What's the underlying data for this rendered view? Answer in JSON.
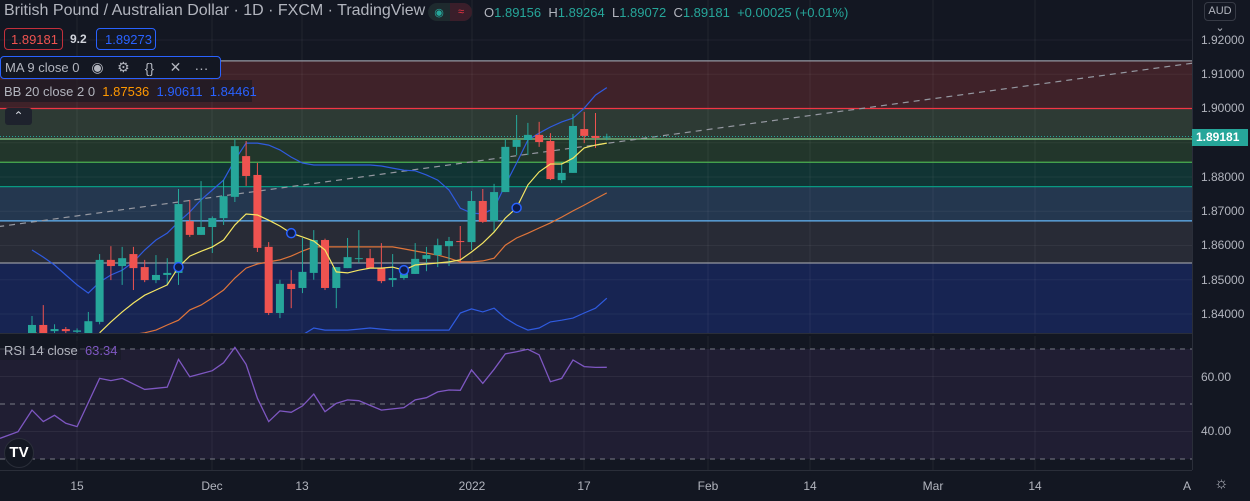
{
  "header": {
    "title": "British Pound / Australian Dollar · 1D · FXCM · TradingView",
    "status_left": "●",
    "status_right": "≈",
    "ohlc": {
      "o_label": "O",
      "o": "1.89156",
      "h_label": "H",
      "h": "1.89264",
      "l_label": "L",
      "l": "1.89072",
      "c_label": "C",
      "c": "1.89181",
      "change": "+0.00025 (+0.01%)"
    }
  },
  "trade": {
    "sell": "1.89181",
    "spread": "9.2",
    "buy": "1.89273"
  },
  "legend": {
    "ma": "MA 9 close 0",
    "bb_label": "BB 20 close 2 0",
    "bb_basis": "1.87536",
    "bb_upper": "1.90611",
    "bb_lower": "1.84461",
    "rsi_label": "RSI 14 close",
    "rsi_value": "63.34"
  },
  "icons": {
    "eye": "◉",
    "gear": "⚙",
    "braces": "{}",
    "close": "✕",
    "more": "···",
    "collapse": "⌃",
    "settings": "☼"
  },
  "price_axis": {
    "currency": "AUD ⌄",
    "current": "1.89181",
    "labels": [
      "1.92000",
      "1.91000",
      "1.90000",
      "1.88000",
      "1.87000",
      "1.86000",
      "1.85000",
      "1.84000"
    ]
  },
  "rsi_axis": {
    "labels": [
      "60.00",
      "40.00"
    ]
  },
  "time_axis": {
    "labels": [
      "15",
      "Dec",
      "13",
      "2022",
      "17",
      "Feb",
      "14",
      "Mar",
      "14",
      "A"
    ]
  },
  "logo": "TV",
  "colors": {
    "up": "#26a69a",
    "down": "#ef5350",
    "ma": "#f5e663",
    "basis": "#e0753a",
    "bands": "#2f5be0",
    "rsi": "#7e57c2"
  },
  "chart_data": {
    "type": "candlestick",
    "ylim": [
      1.834,
      1.924
    ],
    "candles": [
      [
        1.8344,
        1.8394,
        1.8344,
        1.8368
      ],
      [
        1.8368,
        1.8426,
        1.8344,
        1.8344
      ],
      [
        1.835,
        1.837,
        1.8344,
        1.8356
      ],
      [
        1.8356,
        1.8362,
        1.8344,
        1.835
      ],
      [
        1.8348,
        1.8358,
        1.8344,
        1.8352
      ],
      [
        1.8344,
        1.8406,
        1.834,
        1.8379
      ],
      [
        1.8377,
        1.8575,
        1.837,
        1.8558
      ],
      [
        1.8558,
        1.8598,
        1.8499,
        1.854
      ],
      [
        1.854,
        1.8596,
        1.8485,
        1.8563
      ],
      [
        1.8575,
        1.8596,
        1.847,
        1.8534
      ],
      [
        1.8537,
        1.8558,
        1.8493,
        1.8499
      ],
      [
        1.8499,
        1.8572,
        1.849,
        1.8514
      ],
      [
        1.8514,
        1.8563,
        1.8485,
        1.852
      ],
      [
        1.852,
        1.8765,
        1.8485,
        1.8721
      ],
      [
        1.8671,
        1.8733,
        1.8625,
        1.8631
      ],
      [
        1.8631,
        1.8788,
        1.8631,
        1.8654
      ],
      [
        1.8654,
        1.8685,
        1.8578,
        1.868
      ],
      [
        1.868,
        1.8791,
        1.866,
        1.8744
      ],
      [
        1.8742,
        1.8911,
        1.8727,
        1.889
      ],
      [
        1.8861,
        1.8905,
        1.8774,
        1.8803
      ],
      [
        1.8806,
        1.8841,
        1.8581,
        1.8593
      ],
      [
        1.8596,
        1.861,
        1.8397,
        1.8403
      ],
      [
        1.8403,
        1.85,
        1.8388,
        1.8488
      ],
      [
        1.8488,
        1.8528,
        1.8417,
        1.8473
      ],
      [
        1.8476,
        1.8622,
        1.8461,
        1.8523
      ],
      [
        1.852,
        1.8645,
        1.85,
        1.8616
      ],
      [
        1.8616,
        1.862,
        1.847,
        1.8476
      ],
      [
        1.8476,
        1.8537,
        1.8417,
        1.8537
      ],
      [
        1.8534,
        1.8622,
        1.8534,
        1.8566
      ],
      [
        1.8561,
        1.8645,
        1.8549,
        1.8563
      ],
      [
        1.8563,
        1.859,
        1.8534,
        1.8534
      ],
      [
        1.8534,
        1.8607,
        1.849,
        1.8496
      ],
      [
        1.8499,
        1.8575,
        1.8479,
        1.8505
      ],
      [
        1.8505,
        1.8537,
        1.85,
        1.852
      ],
      [
        1.8517,
        1.8607,
        1.8517,
        1.8561
      ],
      [
        1.8561,
        1.8596,
        1.8525,
        1.8572
      ],
      [
        1.8572,
        1.862,
        1.8537,
        1.8601
      ],
      [
        1.8598,
        1.8625,
        1.854,
        1.8613
      ],
      [
        1.8613,
        1.8657,
        1.8549,
        1.861
      ],
      [
        1.861,
        1.8759,
        1.8587,
        1.873
      ],
      [
        1.873,
        1.8765,
        1.8666,
        1.8669
      ],
      [
        1.8671,
        1.878,
        1.8639,
        1.8756
      ],
      [
        1.8756,
        1.8911,
        1.8756,
        1.8888
      ],
      [
        1.8888,
        1.8981,
        1.8864,
        1.8908
      ],
      [
        1.8908,
        1.8958,
        1.8864,
        1.8923
      ],
      [
        1.8923,
        1.8961,
        1.8888,
        1.8902
      ],
      [
        1.8905,
        1.8928,
        1.8791,
        1.8794
      ],
      [
        1.8791,
        1.8844,
        1.8782,
        1.8812
      ],
      [
        1.8812,
        1.8984,
        1.8812,
        1.8949
      ],
      [
        1.894,
        1.899,
        1.8899,
        1.892
      ],
      [
        1.892,
        1.8987,
        1.8885,
        1.8914
      ],
      [
        1.89156,
        1.89264,
        1.89072,
        1.89181
      ]
    ],
    "ma9": [
      null,
      null,
      null,
      null,
      null,
      null,
      1.8345,
      1.8377,
      1.8406,
      1.8432,
      1.8455,
      1.847,
      1.8485,
      1.8537,
      1.8569,
      1.8583,
      1.8596,
      1.8616,
      1.866,
      1.8692,
      1.8689,
      1.8674,
      1.8657,
      1.8636,
      1.8625,
      1.8613,
      1.8587,
      1.8523,
      1.852,
      1.8528,
      1.8534,
      1.8534,
      1.8537,
      1.8528,
      1.8543,
      1.8546,
      1.8549,
      1.8552,
      1.8558,
      1.8581,
      1.8607,
      1.8639,
      1.868,
      1.871,
      1.8777,
      1.8815,
      1.8838,
      1.8838,
      1.8855,
      1.8885,
      1.8893,
      1.8899
    ],
    "ma_markers": [
      13,
      23,
      33,
      43
    ],
    "bb_upper": [
      1.8587,
      1.8566,
      1.8543,
      1.8514,
      1.8485,
      1.8461,
      1.8493,
      1.8514,
      1.8528,
      1.8552,
      1.8587,
      1.8616,
      1.8636,
      1.8669,
      1.8698,
      1.8733,
      1.8762,
      1.8791,
      1.885,
      1.8899,
      1.8899,
      1.8893,
      1.8879,
      1.8858,
      1.8841,
      1.8835,
      1.8835,
      1.8835,
      1.8835,
      1.8835,
      1.8835,
      1.8832,
      1.8826,
      1.882,
      1.8818,
      1.8806,
      1.8791,
      1.8762,
      1.8709,
      1.8695,
      1.8692,
      1.8709,
      1.8777,
      1.8841,
      1.8908,
      1.8928,
      1.8946,
      1.8961,
      1.8972,
      1.9001,
      1.9039,
      1.90611
    ],
    "bb_basis": [
      1.8353,
      1.833,
      1.832,
      1.8315,
      1.8315,
      1.832,
      1.8325,
      1.833,
      1.8335,
      1.834,
      1.8345,
      1.8353,
      1.8368,
      1.8382,
      1.8412,
      1.8426,
      1.8447,
      1.847,
      1.8505,
      1.8534,
      1.8546,
      1.8552,
      1.8558,
      1.8569,
      1.8584,
      1.8596,
      1.8596,
      1.8596,
      1.8596,
      1.8596,
      1.8596,
      1.8596,
      1.8596,
      1.859,
      1.8584,
      1.8578,
      1.8572,
      1.8563,
      1.8552,
      1.8552,
      1.8555,
      1.8563,
      1.8601,
      1.8622,
      1.8636,
      1.8651,
      1.8666,
      1.8683,
      1.8701,
      1.8718,
      1.8736,
      1.87536
    ],
    "bb_lower": [
      null,
      null,
      null,
      null,
      null,
      null,
      null,
      null,
      null,
      null,
      null,
      null,
      null,
      null,
      null,
      null,
      null,
      null,
      null,
      null,
      null,
      null,
      null,
      null,
      1.8339,
      1.8359,
      1.8353,
      1.8353,
      1.8353,
      1.8356,
      1.8359,
      1.8356,
      1.8353,
      1.8353,
      1.8353,
      1.8353,
      1.8353,
      1.8353,
      1.8403,
      1.8415,
      1.8406,
      1.8417,
      1.8388,
      1.8368,
      1.8353,
      1.8359,
      1.8377,
      1.8382,
      1.8388,
      1.8403,
      1.8417,
      1.84461
    ],
    "fib_levels": [
      {
        "price": 1.9139,
        "line": "#9598a1",
        "fill": "#3f2229"
      },
      {
        "price": 1.9,
        "line": "#f23645",
        "fill": "#2d3a34"
      },
      {
        "price": 1.8911,
        "line": "#81c784",
        "fill": "#22362b"
      },
      {
        "price": 1.8843,
        "line": "#4caf50",
        "fill": "#113434"
      },
      {
        "price": 1.8772,
        "line": "#089981",
        "fill": "#24374f"
      },
      {
        "price": 1.8672,
        "line": "#64b5f6",
        "fill": "#282b36"
      },
      {
        "price": 1.8549,
        "line": "#9598a1",
        "fill": "#172452"
      }
    ],
    "trendline": {
      "from": [
        -3,
        1.8655
      ],
      "to": [
        104,
        1.9137
      ]
    },
    "rsi": [
      47.8,
      43.6,
      45.9,
      43.0,
      41.8,
      50.5,
      59.3,
      58.5,
      59.3,
      57.3,
      55.3,
      55.7,
      56.1,
      66.2,
      59.9,
      61.0,
      62.1,
      65.0,
      70.6,
      64.4,
      52.1,
      43.6,
      47.5,
      47.0,
      49.3,
      53.6,
      47.2,
      50.2,
      51.5,
      51.2,
      49.5,
      47.8,
      48.2,
      48.7,
      51.5,
      52.3,
      54.4,
      55.1,
      55.0,
      62.4,
      57.5,
      62.6,
      68.2,
      69.0,
      69.9,
      67.9,
      58.1,
      59.3,
      66.0,
      63.6,
      63.3,
      63.34
    ],
    "rsi_levels": [
      70,
      50,
      30
    ]
  }
}
